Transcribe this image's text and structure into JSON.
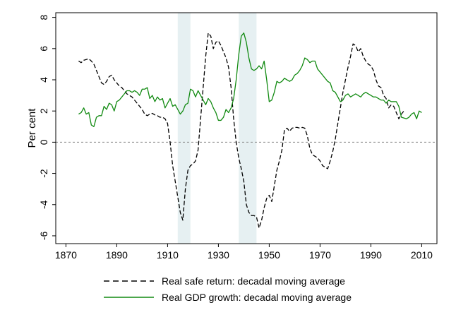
{
  "chart_data": {
    "type": "line",
    "ylabel": "Per cent",
    "xlabel": "",
    "xlim": [
      1866,
      2016
    ],
    "ylim": [
      -6.5,
      8.3
    ],
    "xticks": [
      1870,
      1890,
      1910,
      1930,
      1950,
      1970,
      1990,
      2010
    ],
    "yticks": [
      -6,
      -4,
      -2,
      0,
      2,
      4,
      6,
      8
    ],
    "grid": false,
    "legend_position": "bottom",
    "shaded_periods": [
      [
        1914,
        1919
      ],
      [
        1938,
        1945
      ]
    ],
    "shaded_color": "#e6f0f2",
    "zero_line": {
      "y": 0,
      "style": "dotted",
      "color": "#888888"
    },
    "series": [
      {
        "name": "Real safe return: decadal moving average",
        "color": "#000000",
        "style": "dashed",
        "points": [
          [
            1875,
            5.2
          ],
          [
            1876,
            5.1
          ],
          [
            1877,
            5.25
          ],
          [
            1878,
            5.3
          ],
          [
            1879,
            5.35
          ],
          [
            1880,
            5.2
          ],
          [
            1881,
            5.0
          ],
          [
            1882,
            4.6
          ],
          [
            1883,
            4.2
          ],
          [
            1884,
            3.8
          ],
          [
            1885,
            3.7
          ],
          [
            1886,
            3.9
          ],
          [
            1887,
            4.2
          ],
          [
            1888,
            4.3
          ],
          [
            1889,
            4.0
          ],
          [
            1890,
            3.8
          ],
          [
            1891,
            3.6
          ],
          [
            1892,
            3.5
          ],
          [
            1893,
            3.3
          ],
          [
            1894,
            3.1
          ],
          [
            1895,
            3.0
          ],
          [
            1896,
            2.9
          ],
          [
            1897,
            2.7
          ],
          [
            1898,
            2.5
          ],
          [
            1899,
            2.3
          ],
          [
            1900,
            2.1
          ],
          [
            1901,
            1.8
          ],
          [
            1902,
            1.7
          ],
          [
            1903,
            1.8
          ],
          [
            1904,
            1.85
          ],
          [
            1905,
            1.75
          ],
          [
            1906,
            1.7
          ],
          [
            1907,
            1.6
          ],
          [
            1908,
            1.6
          ],
          [
            1909,
            1.5
          ],
          [
            1910,
            1.2
          ],
          [
            1911,
            0.0
          ],
          [
            1912,
            -1.5
          ],
          [
            1913,
            -2.5
          ],
          [
            1914,
            -3.5
          ],
          [
            1915,
            -4.5
          ],
          [
            1916,
            -5.0
          ],
          [
            1917,
            -3.0
          ],
          [
            1918,
            -1.8
          ],
          [
            1919,
            -1.5
          ],
          [
            1920,
            -1.4
          ],
          [
            1921,
            -1.2
          ],
          [
            1922,
            -0.5
          ],
          [
            1923,
            1.5
          ],
          [
            1924,
            3.5
          ],
          [
            1925,
            5.5
          ],
          [
            1926,
            7.0
          ],
          [
            1927,
            6.8
          ],
          [
            1928,
            6.0
          ],
          [
            1929,
            6.4
          ],
          [
            1930,
            6.5
          ],
          [
            1931,
            6.2
          ],
          [
            1932,
            5.8
          ],
          [
            1933,
            5.4
          ],
          [
            1934,
            4.8
          ],
          [
            1935,
            3.5
          ],
          [
            1936,
            1.5
          ],
          [
            1937,
            0.0
          ],
          [
            1938,
            -1.0
          ],
          [
            1939,
            -1.7
          ],
          [
            1940,
            -2.5
          ],
          [
            1941,
            -4.0
          ],
          [
            1942,
            -4.5
          ],
          [
            1943,
            -4.7
          ],
          [
            1944,
            -4.7
          ],
          [
            1945,
            -4.8
          ],
          [
            1946,
            -5.5
          ],
          [
            1947,
            -5.0
          ],
          [
            1948,
            -4.2
          ],
          [
            1949,
            -3.6
          ],
          [
            1950,
            -3.4
          ],
          [
            1951,
            -3.8
          ],
          [
            1952,
            -2.8
          ],
          [
            1953,
            -1.8
          ],
          [
            1954,
            -1.2
          ],
          [
            1955,
            -0.5
          ],
          [
            1956,
            0.8
          ],
          [
            1957,
            0.9
          ],
          [
            1958,
            0.7
          ],
          [
            1959,
            0.9
          ],
          [
            1960,
            0.95
          ],
          [
            1961,
            0.95
          ],
          [
            1962,
            0.9
          ],
          [
            1963,
            0.95
          ],
          [
            1964,
            0.9
          ],
          [
            1965,
            0.4
          ],
          [
            1966,
            -0.4
          ],
          [
            1967,
            -0.8
          ],
          [
            1968,
            -0.9
          ],
          [
            1969,
            -1.0
          ],
          [
            1970,
            -1.2
          ],
          [
            1971,
            -1.5
          ],
          [
            1972,
            -1.6
          ],
          [
            1973,
            -1.7
          ],
          [
            1974,
            -1.2
          ],
          [
            1975,
            -0.6
          ],
          [
            1976,
            0.2
          ],
          [
            1977,
            1.2
          ],
          [
            1978,
            2.2
          ],
          [
            1979,
            3.2
          ],
          [
            1980,
            4.0
          ],
          [
            1981,
            4.8
          ],
          [
            1982,
            5.5
          ],
          [
            1983,
            6.3
          ],
          [
            1984,
            6.2
          ],
          [
            1985,
            5.8
          ],
          [
            1986,
            6.0
          ],
          [
            1987,
            5.5
          ],
          [
            1988,
            5.2
          ],
          [
            1989,
            5.0
          ],
          [
            1990,
            4.9
          ],
          [
            1991,
            4.6
          ],
          [
            1992,
            4.0
          ],
          [
            1993,
            3.6
          ],
          [
            1994,
            3.5
          ],
          [
            1995,
            3.0
          ],
          [
            1996,
            2.8
          ],
          [
            1997,
            2.2
          ],
          [
            1998,
            2.4
          ],
          [
            1999,
            2.3
          ],
          [
            2000,
            1.9
          ],
          [
            2001,
            1.5
          ],
          [
            2002,
            1.8
          ],
          [
            2003,
            2.0
          ]
        ]
      },
      {
        "name": "Real GDP growth: decadal moving average",
        "color": "#118a11",
        "style": "solid",
        "points": [
          [
            1875,
            1.8
          ],
          [
            1876,
            1.9
          ],
          [
            1877,
            2.2
          ],
          [
            1878,
            1.8
          ],
          [
            1879,
            1.9
          ],
          [
            1880,
            1.1
          ],
          [
            1881,
            1.0
          ],
          [
            1882,
            1.6
          ],
          [
            1883,
            1.7
          ],
          [
            1884,
            1.7
          ],
          [
            1885,
            2.3
          ],
          [
            1886,
            2.1
          ],
          [
            1887,
            2.5
          ],
          [
            1888,
            2.4
          ],
          [
            1889,
            2.0
          ],
          [
            1890,
            2.6
          ],
          [
            1891,
            2.7
          ],
          [
            1892,
            2.9
          ],
          [
            1893,
            3.1
          ],
          [
            1894,
            3.3
          ],
          [
            1895,
            3.3
          ],
          [
            1896,
            3.2
          ],
          [
            1897,
            3.3
          ],
          [
            1898,
            3.2
          ],
          [
            1899,
            3.0
          ],
          [
            1900,
            3.4
          ],
          [
            1901,
            3.4
          ],
          [
            1902,
            3.5
          ],
          [
            1903,
            2.8
          ],
          [
            1904,
            3.0
          ],
          [
            1905,
            2.6
          ],
          [
            1906,
            2.9
          ],
          [
            1907,
            2.7
          ],
          [
            1908,
            2.8
          ],
          [
            1909,
            2.2
          ],
          [
            1910,
            2.5
          ],
          [
            1911,
            2.8
          ],
          [
            1912,
            2.3
          ],
          [
            1913,
            2.4
          ],
          [
            1914,
            2.1
          ],
          [
            1915,
            1.8
          ],
          [
            1916,
            2.0
          ],
          [
            1917,
            2.4
          ],
          [
            1918,
            2.5
          ],
          [
            1919,
            3.4
          ],
          [
            1920,
            3.3
          ],
          [
            1921,
            2.9
          ],
          [
            1922,
            3.3
          ],
          [
            1923,
            3.0
          ],
          [
            1924,
            2.7
          ],
          [
            1925,
            2.4
          ],
          [
            1926,
            2.8
          ],
          [
            1927,
            2.6
          ],
          [
            1928,
            2.2
          ],
          [
            1929,
            1.9
          ],
          [
            1930,
            1.4
          ],
          [
            1931,
            1.4
          ],
          [
            1932,
            1.6
          ],
          [
            1933,
            2.1
          ],
          [
            1934,
            1.9
          ],
          [
            1935,
            2.2
          ],
          [
            1936,
            2.8
          ],
          [
            1937,
            4.0
          ],
          [
            1938,
            5.6
          ],
          [
            1939,
            6.8
          ],
          [
            1940,
            7.0
          ],
          [
            1941,
            6.4
          ],
          [
            1942,
            5.4
          ],
          [
            1943,
            4.7
          ],
          [
            1944,
            4.6
          ],
          [
            1945,
            4.7
          ],
          [
            1946,
            4.9
          ],
          [
            1947,
            4.7
          ],
          [
            1948,
            5.2
          ],
          [
            1949,
            4.0
          ],
          [
            1950,
            2.6
          ],
          [
            1951,
            2.7
          ],
          [
            1952,
            3.2
          ],
          [
            1953,
            3.9
          ],
          [
            1954,
            3.8
          ],
          [
            1955,
            3.9
          ],
          [
            1956,
            4.1
          ],
          [
            1957,
            4.0
          ],
          [
            1958,
            3.9
          ],
          [
            1959,
            4.0
          ],
          [
            1960,
            4.3
          ],
          [
            1961,
            4.4
          ],
          [
            1962,
            4.6
          ],
          [
            1963,
            4.9
          ],
          [
            1964,
            5.4
          ],
          [
            1965,
            5.3
          ],
          [
            1966,
            5.1
          ],
          [
            1967,
            5.2
          ],
          [
            1968,
            5.2
          ],
          [
            1969,
            4.7
          ],
          [
            1970,
            4.5
          ],
          [
            1971,
            4.3
          ],
          [
            1972,
            4.1
          ],
          [
            1973,
            3.9
          ],
          [
            1974,
            3.8
          ],
          [
            1975,
            3.3
          ],
          [
            1976,
            3.2
          ],
          [
            1977,
            2.9
          ],
          [
            1978,
            2.6
          ],
          [
            1979,
            2.7
          ],
          [
            1980,
            3.0
          ],
          [
            1981,
            3.1
          ],
          [
            1982,
            2.9
          ],
          [
            1983,
            3.0
          ],
          [
            1984,
            3.1
          ],
          [
            1985,
            3.0
          ],
          [
            1986,
            2.9
          ],
          [
            1987,
            3.1
          ],
          [
            1988,
            3.2
          ],
          [
            1989,
            3.1
          ],
          [
            1990,
            3.0
          ],
          [
            1991,
            2.9
          ],
          [
            1992,
            2.9
          ],
          [
            1993,
            2.8
          ],
          [
            1994,
            2.7
          ],
          [
            1995,
            2.7
          ],
          [
            1996,
            2.5
          ],
          [
            1997,
            2.7
          ],
          [
            1998,
            2.6
          ],
          [
            1999,
            2.6
          ],
          [
            2000,
            2.6
          ],
          [
            2001,
            2.3
          ],
          [
            2002,
            1.6
          ],
          [
            2003,
            1.55
          ],
          [
            2004,
            1.5
          ],
          [
            2005,
            1.6
          ],
          [
            2006,
            1.8
          ],
          [
            2007,
            1.9
          ],
          [
            2008,
            1.5
          ],
          [
            2009,
            2.0
          ],
          [
            2010,
            1.9
          ]
        ]
      }
    ]
  }
}
